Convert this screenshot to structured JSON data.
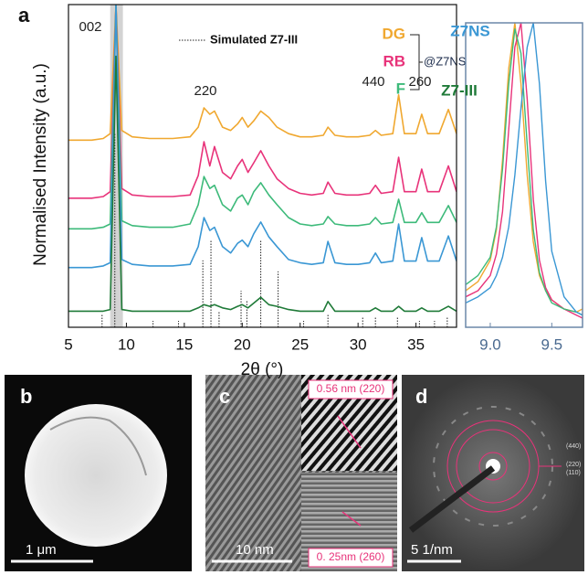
{
  "chart_data": [
    {
      "type": "line",
      "panel": "a",
      "x_label": "2θ (°)",
      "y_label": "Normalised Intensity (a.u.)",
      "xlim": [
        5,
        38.5
      ],
      "ylim": [
        0,
        100
      ],
      "xticks": [
        5,
        10,
        15,
        20,
        25,
        30,
        35
      ],
      "highlight": [
        8.6,
        9.7
      ],
      "x": [
        5,
        7,
        8,
        8.6,
        9.1,
        9.6,
        10.5,
        12,
        14,
        15.5,
        16.2,
        16.7,
        17.2,
        17.6,
        18.3,
        19,
        19.6,
        20,
        20.5,
        21,
        21.6,
        22.3,
        23,
        24,
        25,
        26,
        27,
        27.4,
        28,
        29,
        30,
        31,
        31.5,
        32,
        33,
        33.5,
        34,
        35,
        35.5,
        36,
        37,
        37.8,
        38.5
      ],
      "series": [
        {
          "name": "DG",
          "color": "#f0a830",
          "values": [
            58,
            58,
            58.5,
            60,
            100,
            61,
            59,
            58.5,
            58.5,
            59,
            62,
            68,
            66,
            67,
            62,
            61,
            63,
            65,
            62,
            64,
            67,
            65,
            62,
            60,
            59,
            59,
            59.5,
            62,
            59.5,
            59,
            59,
            59.5,
            61,
            59.5,
            60,
            72,
            60,
            60,
            66,
            60,
            60,
            67.5,
            60
          ]
        },
        {
          "name": "RB",
          "color": "#e8337a",
          "values": [
            40,
            40,
            40.5,
            42,
            100,
            43,
            41,
            40.5,
            40.5,
            41,
            47,
            57.5,
            50,
            56,
            48,
            46,
            50,
            52,
            48,
            51,
            54.7,
            50,
            46,
            43,
            41.5,
            41,
            41.5,
            45,
            41.5,
            41,
            41,
            41.5,
            44,
            41.5,
            42,
            52.7,
            42,
            42,
            49,
            42,
            42,
            50,
            42
          ]
        },
        {
          "name": "F",
          "color": "#3dba7a",
          "values": [
            30.5,
            30.5,
            31,
            32,
            100,
            33,
            31.5,
            31,
            31,
            32,
            38,
            46.7,
            43,
            44,
            38,
            36,
            40,
            41,
            38,
            42,
            44.8,
            41,
            38,
            34,
            32,
            31.5,
            32,
            34.3,
            32,
            31.5,
            31.5,
            32,
            34,
            32,
            32.5,
            39.7,
            32.5,
            32.5,
            35.5,
            32.5,
            32.5,
            37.7,
            32.5
          ]
        },
        {
          "name": "Z7NS",
          "color": "#3a97d4",
          "values": [
            18.5,
            18.5,
            19,
            20,
            100,
            21,
            19.5,
            19,
            19,
            19.5,
            25,
            34,
            30,
            31,
            25,
            23,
            26,
            27,
            25,
            29,
            32.6,
            28,
            25,
            21,
            20,
            19.5,
            20,
            26.6,
            20,
            19.5,
            19.5,
            20,
            23,
            20,
            20.5,
            32,
            20.5,
            20.5,
            27.8,
            20.5,
            20.5,
            28.3,
            20.5
          ]
        },
        {
          "name": "Z7-III",
          "color": "#1f7a38",
          "values": [
            5,
            5,
            5,
            5.5,
            84,
            5.5,
            5,
            5,
            5,
            5,
            6,
            7,
            6.5,
            7,
            6,
            5.5,
            6.5,
            7,
            6,
            7.5,
            9.3,
            7,
            6.5,
            5.5,
            5,
            5,
            5,
            8,
            5,
            5,
            5,
            5,
            6,
            5,
            5,
            6.5,
            5,
            5,
            6,
            5,
            5,
            6.5,
            5
          ]
        }
      ],
      "legend_suffix": "@Z7NS",
      "simulated": {
        "name": "Simulated Z7-III",
        "color": "#222222",
        "x": [
          7.9,
          9.0,
          12.3,
          14.5,
          16.6,
          17.3,
          18.0,
          19.9,
          20.4,
          21.6,
          23.1,
          25.3,
          27.4,
          30.4,
          31.5,
          33.4,
          35.3,
          36.6,
          37.7
        ],
        "values": [
          4,
          60,
          2,
          2,
          20.7,
          27.2,
          5,
          11.3,
          8.5,
          27.2,
          17.3,
          2,
          4,
          3,
          3,
          3,
          2,
          2,
          3
        ]
      },
      "annotations": [
        "002",
        "220",
        "440",
        "260"
      ]
    },
    {
      "type": "line",
      "xlim": [
        8.8,
        9.75
      ],
      "ylim": [
        0,
        100
      ],
      "xticks": [
        {
          "value": 9,
          "label": "9.0"
        },
        9.5
      ],
      "x": [
        8.8,
        8.9,
        9.0,
        9.05,
        9.1,
        9.15,
        9.2,
        9.25,
        9.3,
        9.35,
        9.4,
        9.45,
        9.5,
        9.6,
        9.7,
        9.75
      ],
      "series": [
        {
          "color": "#f0a830",
          "values": [
            12,
            15,
            22,
            32,
            55,
            85,
            100,
            80,
            50,
            28,
            17,
            12,
            9,
            6,
            5,
            6
          ]
        },
        {
          "color": "#e8337a",
          "values": [
            10,
            12,
            17,
            24,
            38,
            65,
            92,
            100,
            75,
            42,
            22,
            13,
            9,
            6,
            4,
            3
          ]
        },
        {
          "color": "#3dba7a",
          "values": [
            14,
            17,
            23,
            33,
            52,
            80,
            98,
            90,
            60,
            32,
            18,
            12,
            8,
            6,
            5,
            4
          ]
        },
        {
          "color": "#3a97d4",
          "values": [
            8,
            10,
            13,
            17,
            23,
            33,
            50,
            72,
            92,
            100,
            80,
            48,
            25,
            10,
            5,
            4
          ]
        }
      ]
    }
  ],
  "panels": {
    "b": {
      "label": "b",
      "scale": "1 μm"
    },
    "c": {
      "label": "c",
      "scale": "10 nm",
      "top": "0.56 nm (220)",
      "bottom": "0. 25nm (260)"
    },
    "d": {
      "label": "d",
      "scale": "5 1/nm",
      "rings": [
        "(440)",
        "(220)",
        "(110)"
      ]
    }
  }
}
